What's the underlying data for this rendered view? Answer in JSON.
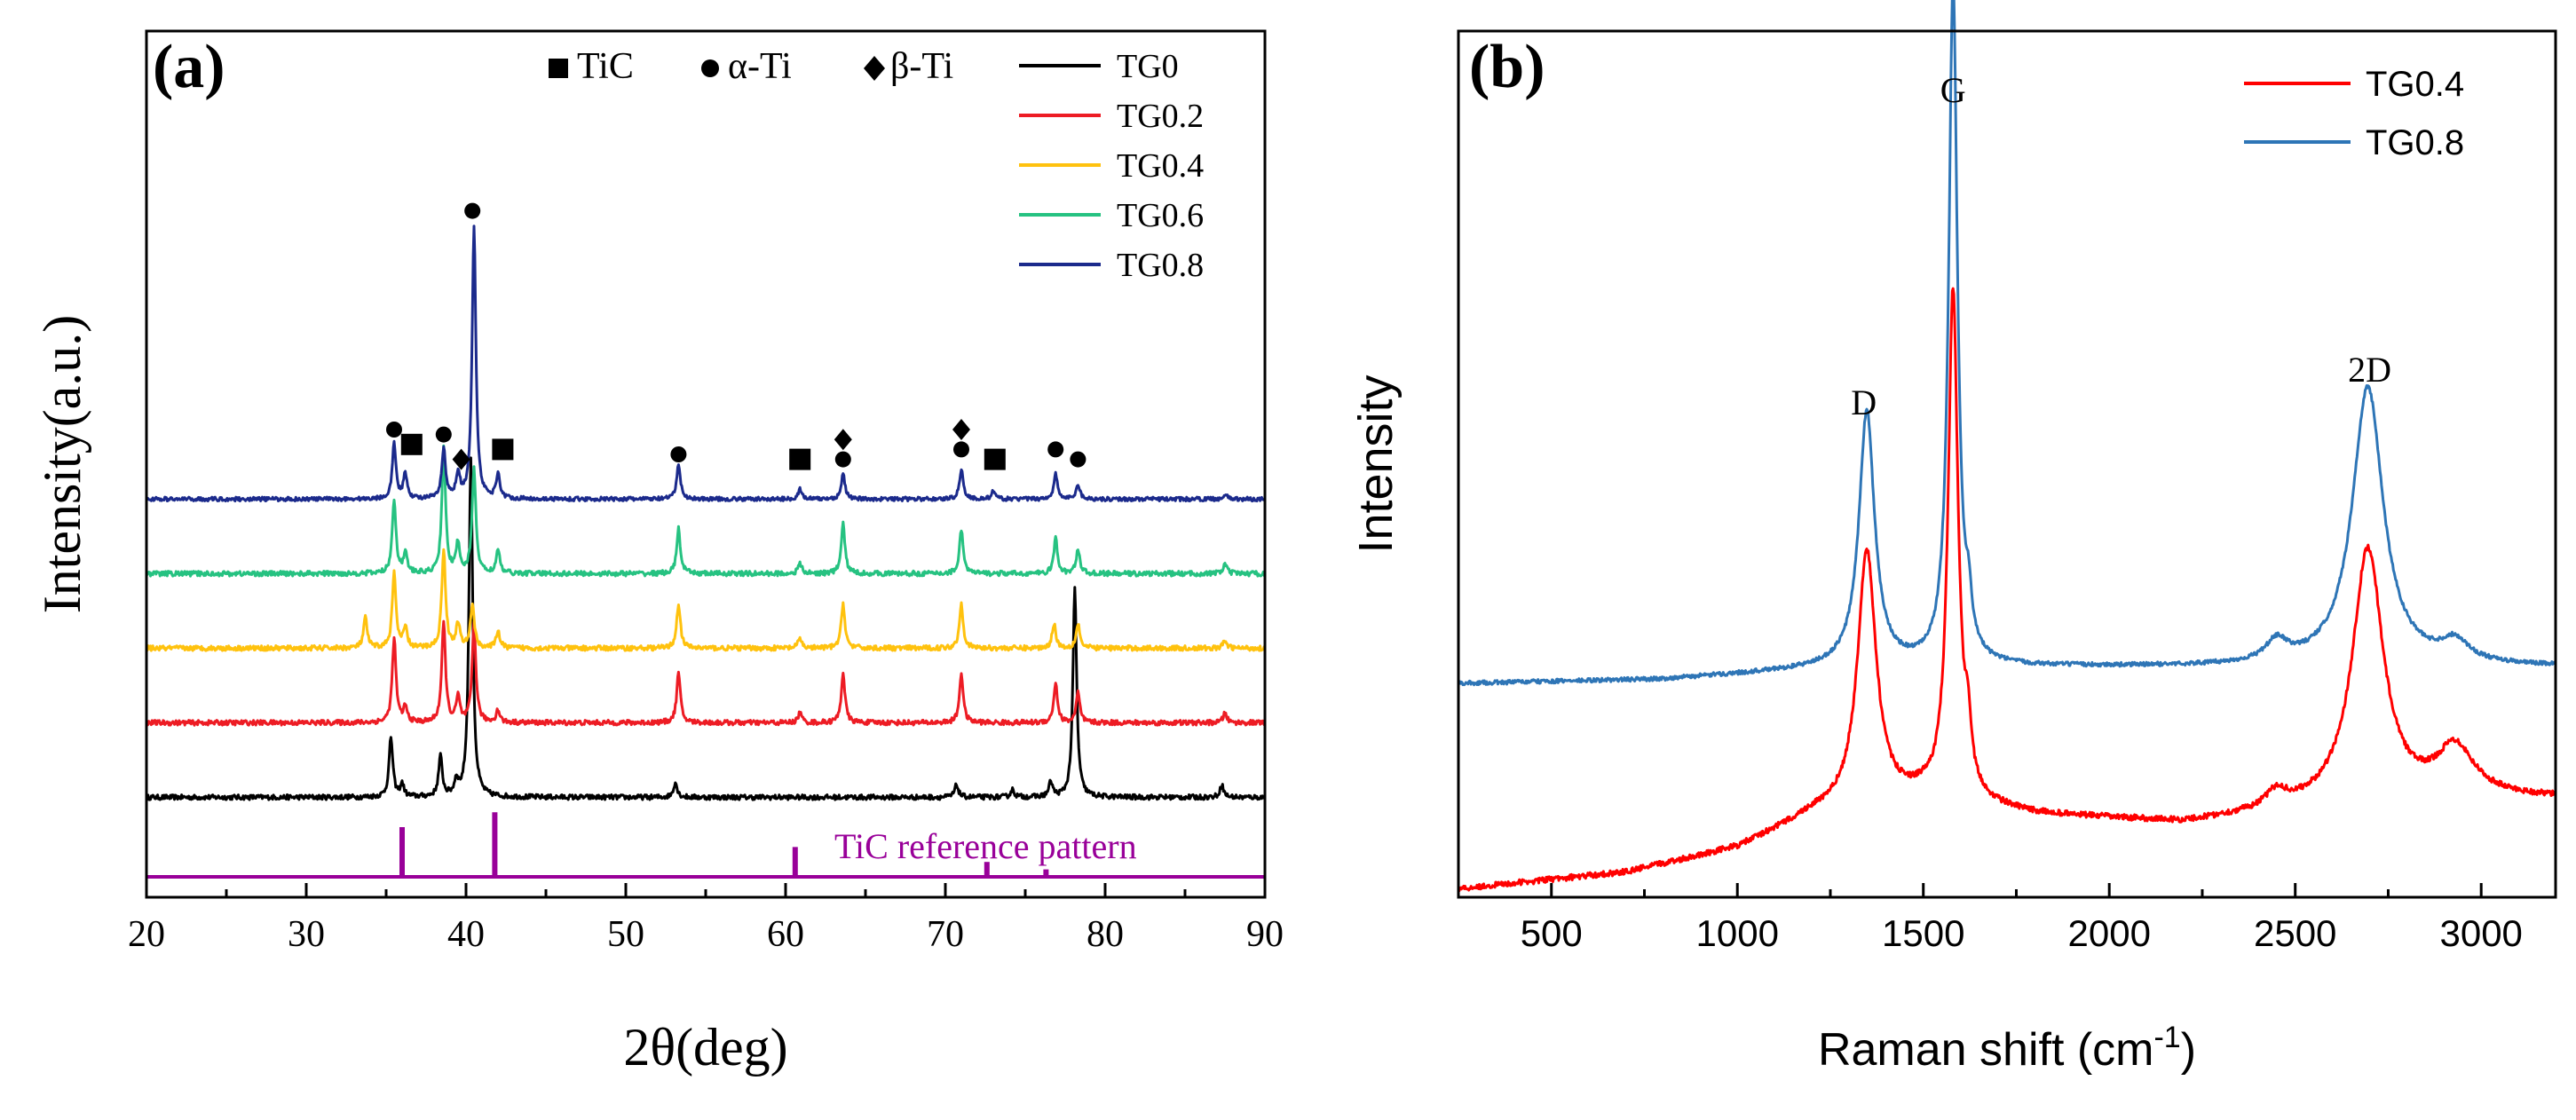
{
  "panels": [
    {
      "id": "a",
      "panel_label": "(a)",
      "xlabel": "2θ(deg)",
      "ylabel": "Intensity(a.u.)",
      "phase_legend": [
        {
          "symbol": "square",
          "label": "TiC"
        },
        {
          "symbol": "circle",
          "label": "α-Ti"
        },
        {
          "symbol": "diamond",
          "label": "β-Ti"
        }
      ],
      "reference_label": "TiC reference pattern"
    },
    {
      "id": "b",
      "panel_label": "(b)",
      "xlabel_main": "Raman shift (cm",
      "xlabel_sup": "-1",
      "xlabel_close": ")",
      "ylabel": "Intensity",
      "peak_labels": [
        "D",
        "G",
        "2D"
      ]
    }
  ],
  "chart_data": [
    {
      "type": "line",
      "title": "(a)",
      "xlabel": "2θ(deg)",
      "ylabel": "Intensity(a.u.)",
      "xlim": [
        20,
        90
      ],
      "xticks": [
        20,
        30,
        40,
        50,
        60,
        70,
        80,
        90
      ],
      "ylim": [
        0,
        1.3
      ],
      "yticks_visible": false,
      "grid": false,
      "legend_position": "top-right",
      "series": [
        {
          "name": "TG0",
          "color": "#000000",
          "baseline": 0.16,
          "noise": 0.005,
          "peaks": [
            [
              35.3,
              0.12
            ],
            [
              36.0,
              0.025
            ],
            [
              38.4,
              0.08
            ],
            [
              39.4,
              0.03
            ],
            [
              40.3,
              0.68
            ],
            [
              53.1,
              0.03
            ],
            [
              70.7,
              0.025
            ],
            [
              74.2,
              0.015
            ],
            [
              76.6,
              0.03
            ],
            [
              78.1,
              0.42
            ],
            [
              87.3,
              0.025
            ]
          ]
        },
        {
          "name": "TG0.2",
          "color": "#ed1c24",
          "baseline": 0.31,
          "noise": 0.005,
          "peaks": [
            [
              35.5,
              0.17
            ],
            [
              36.2,
              0.03
            ],
            [
              38.6,
              0.2
            ],
            [
              39.5,
              0.05
            ],
            [
              40.5,
              0.2
            ],
            [
              42.0,
              0.025
            ],
            [
              53.3,
              0.1
            ],
            [
              60.9,
              0.02
            ],
            [
              63.6,
              0.1
            ],
            [
              71.0,
              0.1
            ],
            [
              76.9,
              0.08
            ],
            [
              78.3,
              0.06
            ],
            [
              87.5,
              0.02
            ]
          ]
        },
        {
          "name": "TG0.4",
          "color": "#ffc20e",
          "baseline": 0.46,
          "noise": 0.005,
          "peaks": [
            [
              33.7,
              0.06
            ],
            [
              35.5,
              0.15
            ],
            [
              36.2,
              0.04
            ],
            [
              38.6,
              0.2
            ],
            [
              39.5,
              0.05
            ],
            [
              40.4,
              0.09
            ],
            [
              42.0,
              0.035
            ],
            [
              53.3,
              0.09
            ],
            [
              60.9,
              0.02
            ],
            [
              63.6,
              0.09
            ],
            [
              71.0,
              0.09
            ],
            [
              76.8,
              0.05
            ],
            [
              78.3,
              0.05
            ],
            [
              87.5,
              0.015
            ]
          ]
        },
        {
          "name": "TG0.6",
          "color": "#26c281",
          "baseline": 0.61,
          "noise": 0.005,
          "peaks": [
            [
              35.5,
              0.15
            ],
            [
              36.2,
              0.04
            ],
            [
              38.6,
              0.25
            ],
            [
              39.5,
              0.06
            ],
            [
              40.5,
              0.21
            ],
            [
              42.0,
              0.045
            ],
            [
              53.3,
              0.09
            ],
            [
              60.9,
              0.02
            ],
            [
              63.6,
              0.1
            ],
            [
              71.0,
              0.09
            ],
            [
              76.9,
              0.07
            ],
            [
              78.3,
              0.05
            ],
            [
              87.5,
              0.02
            ]
          ]
        },
        {
          "name": "TG0.8",
          "color": "#1b2a8c",
          "baseline": 0.76,
          "noise": 0.004,
          "peaks": [
            [
              35.5,
              0.11
            ],
            [
              36.2,
              0.05
            ],
            [
              38.6,
              0.1
            ],
            [
              39.5,
              0.05
            ],
            [
              40.5,
              0.55
            ],
            [
              42.0,
              0.05
            ],
            [
              53.3,
              0.07
            ],
            [
              60.9,
              0.02
            ],
            [
              63.6,
              0.05
            ],
            [
              71.0,
              0.06
            ],
            [
              73.0,
              0.015
            ],
            [
              76.9,
              0.05
            ],
            [
              78.3,
              0.03
            ],
            [
              87.5,
              0.01
            ]
          ]
        },
        {
          "name": "TiC reference pattern",
          "color": "#990099",
          "type": "stick",
          "baseline": 0.0,
          "peaks": [
            [
              36.0,
              0.1
            ],
            [
              41.8,
              0.13
            ],
            [
              60.6,
              0.06
            ],
            [
              72.6,
              0.03
            ],
            [
              76.3,
              0.015
            ]
          ]
        }
      ],
      "markers": [
        {
          "symbol": "circle",
          "x": 35.5,
          "y": 0.9
        },
        {
          "symbol": "square",
          "x": 36.6,
          "y": 0.87
        },
        {
          "symbol": "circle",
          "x": 38.6,
          "y": 0.89
        },
        {
          "symbol": "diamond",
          "x": 39.7,
          "y": 0.84
        },
        {
          "symbol": "circle",
          "x": 40.4,
          "y": 1.34
        },
        {
          "symbol": "square",
          "x": 42.3,
          "y": 0.86
        },
        {
          "symbol": "circle",
          "x": 53.3,
          "y": 0.85
        },
        {
          "symbol": "square",
          "x": 60.9,
          "y": 0.84
        },
        {
          "symbol": "circle",
          "x": 63.6,
          "y": 0.84
        },
        {
          "symbol": "diamond",
          "x": 63.6,
          "y": 0.88
        },
        {
          "symbol": "circle",
          "x": 71.0,
          "y": 0.86
        },
        {
          "symbol": "diamond",
          "x": 71.0,
          "y": 0.9
        },
        {
          "symbol": "square",
          "x": 73.1,
          "y": 0.84
        },
        {
          "symbol": "circle",
          "x": 76.9,
          "y": 0.86
        },
        {
          "symbol": "circle",
          "x": 78.3,
          "y": 0.84
        }
      ]
    },
    {
      "type": "line",
      "title": "(b)",
      "xlabel": "Raman shift (cm-1)",
      "ylabel": "Intensity",
      "xlim": [
        250,
        3200
      ],
      "xticks": [
        500,
        1000,
        1500,
        2000,
        2500,
        3000
      ],
      "ylim": [
        0,
        1
      ],
      "yticks_visible": false,
      "grid": false,
      "legend_position": "top-right",
      "series": [
        {
          "name": "TG0.4",
          "color": "#ff0000",
          "noise": 0.0035,
          "background": [
            [
              250,
              0.01
            ],
            [
              700,
              0.03
            ],
            [
              1000,
              0.06
            ],
            [
              1200,
              0.1
            ],
            [
              1500,
              0.12
            ],
            [
              1800,
              0.1
            ],
            [
              2200,
              0.09
            ],
            [
              2600,
              0.11
            ],
            [
              3000,
              0.12
            ],
            [
              3200,
              0.12
            ]
          ],
          "peaks": [
            [
              1348,
              0.31,
              30
            ],
            [
              1580,
              0.62,
              16
            ],
            [
              1620,
              0.06,
              10
            ],
            [
              2450,
              0.02,
              35
            ],
            [
              2695,
              0.31,
              50
            ],
            [
              2930,
              0.06,
              60
            ]
          ]
        },
        {
          "name": "TG0.8",
          "color": "#2e75b6",
          "noise": 0.0025,
          "background": [
            [
              250,
              0.26
            ],
            [
              800,
              0.265
            ],
            [
              1300,
              0.28
            ],
            [
              1700,
              0.28
            ],
            [
              2300,
              0.28
            ],
            [
              3200,
              0.28
            ]
          ],
          "peaks": [
            [
              1348,
              0.31,
              25
            ],
            [
              1580,
              0.83,
              14
            ],
            [
              1622,
              0.05,
              9
            ],
            [
              2450,
              0.025,
              35
            ],
            [
              2695,
              0.34,
              50
            ],
            [
              2930,
              0.025,
              45
            ]
          ]
        }
      ],
      "peak_labels": [
        {
          "label": "D",
          "x": 1340,
          "y": 0.62
        },
        {
          "label": "G",
          "x": 1580,
          "y": 1.0
        },
        {
          "label": "2D",
          "x": 2700,
          "y": 0.66
        }
      ]
    }
  ]
}
